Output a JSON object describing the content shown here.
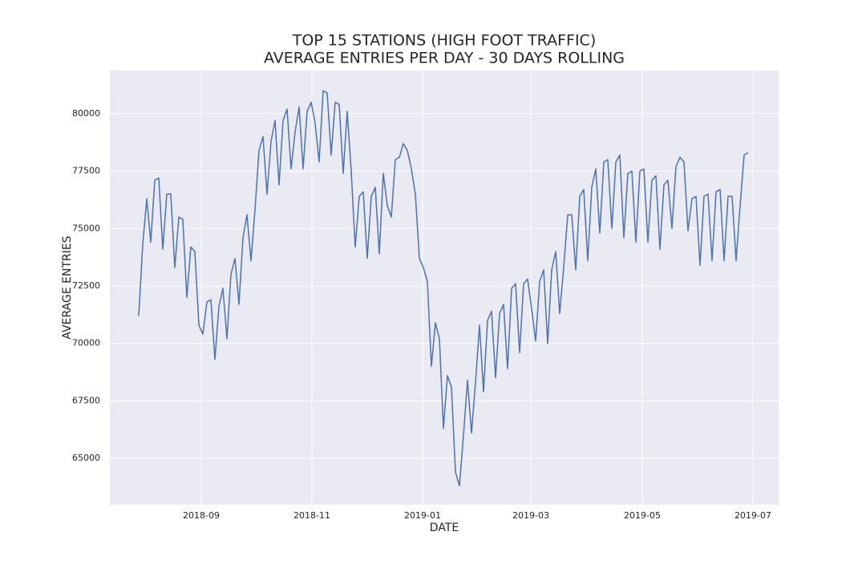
{
  "chart_data": {
    "type": "line",
    "title": "TOP 15 STATIONS (HIGH FOOT TRAFFIC)",
    "subtitle": "AVERAGE ENTRIES PER DAY - 30 DAYS ROLLING",
    "x_label": "DATE",
    "y_label": "AVERAGE ENTRIES",
    "color": "#4c72b0",
    "grid": true,
    "ylim": [
      62980,
      81880
    ],
    "yticks": [
      65000,
      67500,
      70000,
      72500,
      75000,
      77500,
      80000
    ],
    "xticks": [
      "2018-09",
      "2018-11",
      "2019-01",
      "2019-03",
      "2019-05",
      "2019-07"
    ],
    "values": [
      71200,
      74300,
      76300,
      74400,
      77100,
      77200,
      74100,
      76500,
      76500,
      73300,
      75500,
      75400,
      72000,
      74200,
      74000,
      70800,
      70400,
      71800,
      71900,
      69300,
      71600,
      72400,
      70200,
      73000,
      73700,
      71700,
      74600,
      75600,
      73600,
      75800,
      78400,
      79000,
      76500,
      78800,
      79700,
      76900,
      79700,
      80200,
      77600,
      79200,
      80300,
      77600,
      80100,
      80500,
      79600,
      77900,
      81000,
      80900,
      78200,
      80500,
      80400,
      77400,
      80100,
      77500,
      74200,
      76400,
      76600,
      73700,
      76400,
      76800,
      73900,
      77400,
      76000,
      75500,
      78000,
      78100,
      78700,
      78400,
      77600,
      76500,
      73700,
      73300,
      72700,
      69000,
      70900,
      70200,
      66300,
      68600,
      68100,
      64400,
      63800,
      66000,
      68400,
      66100,
      68300,
      70800,
      67900,
      71000,
      71400,
      68500,
      71300,
      71700,
      68900,
      72400,
      72600,
      69600,
      72600,
      72800,
      71500,
      70100,
      72700,
      73200,
      70000,
      73200,
      74000,
      71300,
      73300,
      75600,
      75600,
      73200,
      76400,
      76700,
      73600,
      76800,
      77600,
      74800,
      77900,
      78000,
      75000,
      77900,
      78200,
      74600,
      77400,
      77500,
      74400,
      77500,
      77600,
      74400,
      77100,
      77300,
      74100,
      76900,
      77100,
      75000,
      77700,
      78100,
      77900,
      74900,
      76300,
      76400,
      73400,
      76400,
      76500,
      73600,
      76600,
      76700,
      73600,
      76400,
      76400,
      73600,
      76000,
      78200,
      78300
    ]
  }
}
